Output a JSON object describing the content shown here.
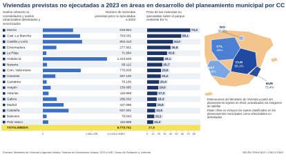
{
  "chart_data": [
    {
      "type": "bar",
      "title": "Número de viviendas previstas pero no ejecutadas a 2023",
      "color": "#3b6fc6",
      "categories": [
        "Murcia",
        "Cast.-La Mancha",
        "Castilla y León",
        "Extremadura",
        "La Rioja",
        "Andalucía",
        "Navarra",
        "Com. Valenciana",
        "Canarias",
        "Cantabria",
        "Aragón",
        "Asturias",
        "Galicia",
        "Madrid",
        "Cataluña",
        "Baleares",
        "País Vasco"
      ],
      "values": [
        619904,
        763031,
        804413,
        277801,
        71684,
        1313646,
        85112,
        776839,
        257130,
        78106,
        159695,
        116608,
        286032,
        427096,
        527201,
        78643,
        110808
      ],
      "value_labels": [
        "619.904",
        "763.031",
        "804.413",
        "277.801",
        "71.684",
        "1.313.646",
        "85.112",
        "776.839",
        "257.130",
        "78.106",
        "159.695",
        "116.608",
        "286.032",
        "427.096",
        "527.201",
        "78.643",
        "110.808"
      ],
      "xlim": [
        0,
        1500000
      ],
      "xticks": [
        0,
        {
          "value": 1000000,
          "label": "1 MILLÓN"
        },
        {
          "value": 1500000,
          "label": "1,5 MILLONES"
        }
      ]
    },
    {
      "type": "bar",
      "title": "Peso de las viviendas no ejecutadas sobre el parque existente En %",
      "color": "#1c3566",
      "values": [
        73.4,
        58.1,
        44.0,
        39.8,
        33.9,
        28.1,
        25.7,
        23.6,
        23.2,
        20.4,
        19.0,
        17.3,
        16.3,
        15.5,
        13.5,
        12.1,
        10.3
      ],
      "value_labels": [
        "73,4",
        "58,1",
        "44,0",
        "39,8",
        "33,9",
        "28,1",
        "25,7",
        "23,6",
        "23,2",
        "20,4",
        "19,0",
        "17,3",
        "16,3",
        "15,5",
        "13,5",
        "12,1",
        "10,3"
      ],
      "xlim": [
        0,
        80
      ],
      "xticks": [
        0,
        10,
        20,
        30,
        40,
        50,
        60,
        70,
        80
      ]
    }
  ],
  "title": "Viviendas previstas no ejecutadas a 2023 en áreas en desarrollo del planeamiento municipal por CC AA",
  "left_header": "Suelos urbanos no consolidados y suelos urbanizables delimitados y sectorizados",
  "total": {
    "label": "TOTAL/MEDIA",
    "viviendas": "6.773.741",
    "peso": "27,8"
  },
  "map": {
    "labels": [
      {
        "code": "RIO",
        "value": "33,9%"
      },
      {
        "code": "CYL",
        "value": "44%"
      },
      {
        "code": "EXT",
        "value": "39,8%"
      },
      {
        "code": "CLM",
        "value": "58,1%"
      },
      {
        "code": "MUR",
        "value": "73,4%"
      }
    ]
  },
  "notes": [
    "Estimaciones del Ministerio de Vivienda a partir del planeamiento vigente en 2023, actualizadas vía imágenes de satélite.",
    "Estas cifras no incluyen los suelos clasificados en los planeamientos municipales como urbanizables no delimitados"
  ],
  "source": "Fuentes: Ministerio de Vivienda y Agenda Urbana, Sistema de Información urbana, 2023 e INE, Censo de Población y Vivienda",
  "credit": "BELÉN TRINCADO / CINCO DÍAS"
}
